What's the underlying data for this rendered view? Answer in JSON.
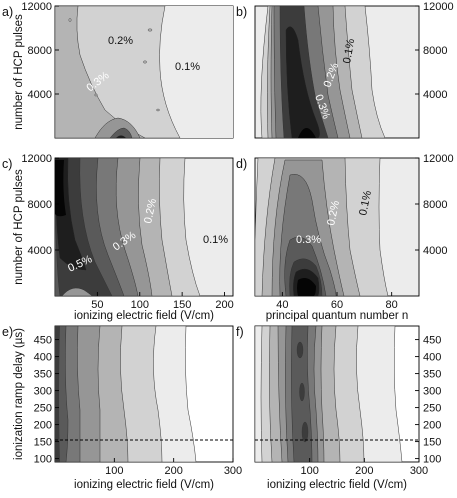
{
  "chart_data": [
    {
      "panel": "a)",
      "type": "heatmap",
      "ylabel": "number of HCP pulses",
      "xlabel": "",
      "xlim": [
        0,
        210
      ],
      "ylim": [
        0,
        12000
      ],
      "yticks": [
        "4000",
        "8000",
        "12000"
      ],
      "xticks": [],
      "contour_labels": [
        "0.2%",
        "0.1%",
        "0.3%"
      ]
    },
    {
      "panel": "b)",
      "type": "heatmap",
      "ylabel": "",
      "xlabel": "",
      "xlim": [
        30,
        90
      ],
      "ylim": [
        0,
        12000
      ],
      "yticks": [
        "4000",
        "8000",
        "12000"
      ],
      "xticks": [],
      "contour_labels": [
        "0.1%",
        "0.2%",
        "0.3%"
      ]
    },
    {
      "panel": "c)",
      "type": "heatmap",
      "ylabel": "number of HCP pulses",
      "xlabel": "ionizing electric field (V/cm)",
      "xlim": [
        0,
        210
      ],
      "ylim": [
        0,
        12000
      ],
      "yticks": [
        "4000",
        "8000",
        "12000"
      ],
      "xticks": [
        "50",
        "100",
        "150",
        "200"
      ],
      "contour_labels": [
        "0.2%",
        "0.3%",
        "0.5%",
        "0.1%"
      ]
    },
    {
      "panel": "d)",
      "type": "heatmap",
      "ylabel": "",
      "xlabel": "principal quantum number n",
      "xlim": [
        30,
        90
      ],
      "ylim": [
        0,
        12000
      ],
      "yticks": [
        "4000",
        "8000",
        "12000"
      ],
      "xticks": [
        "40",
        "60",
        "80"
      ],
      "contour_labels": [
        "0.2%",
        "0.1%",
        "0.3%"
      ]
    },
    {
      "panel": "e)",
      "type": "heatmap",
      "ylabel": "ionization ramp delay (µs)",
      "xlabel": "ionizing electric field (V/cm)",
      "xlim": [
        0,
        300
      ],
      "ylim": [
        90,
        490
      ],
      "yticks": [
        "100",
        "150",
        "200",
        "250",
        "300",
        "350",
        "400",
        "450"
      ],
      "xticks": [
        "100",
        "200",
        "300"
      ],
      "dashed_line_y": 150
    },
    {
      "panel": "f)",
      "type": "heatmap",
      "ylabel": "",
      "xlabel": "ionizing electric field (V/cm)",
      "xlim": [
        0,
        300
      ],
      "ylim": [
        90,
        490
      ],
      "yticks": [
        "100",
        "150",
        "200",
        "250",
        "300",
        "350",
        "400",
        "450"
      ],
      "xticks": [
        "100",
        "200",
        "300"
      ],
      "dashed_line_y": 150
    }
  ],
  "colors": {
    "levels": [
      "#ececec",
      "#d2d2d2",
      "#b4b4b4",
      "#969696",
      "#787878",
      "#5a5a5a",
      "#3c3c3c",
      "#1e1e1e",
      "#050505"
    ]
  }
}
